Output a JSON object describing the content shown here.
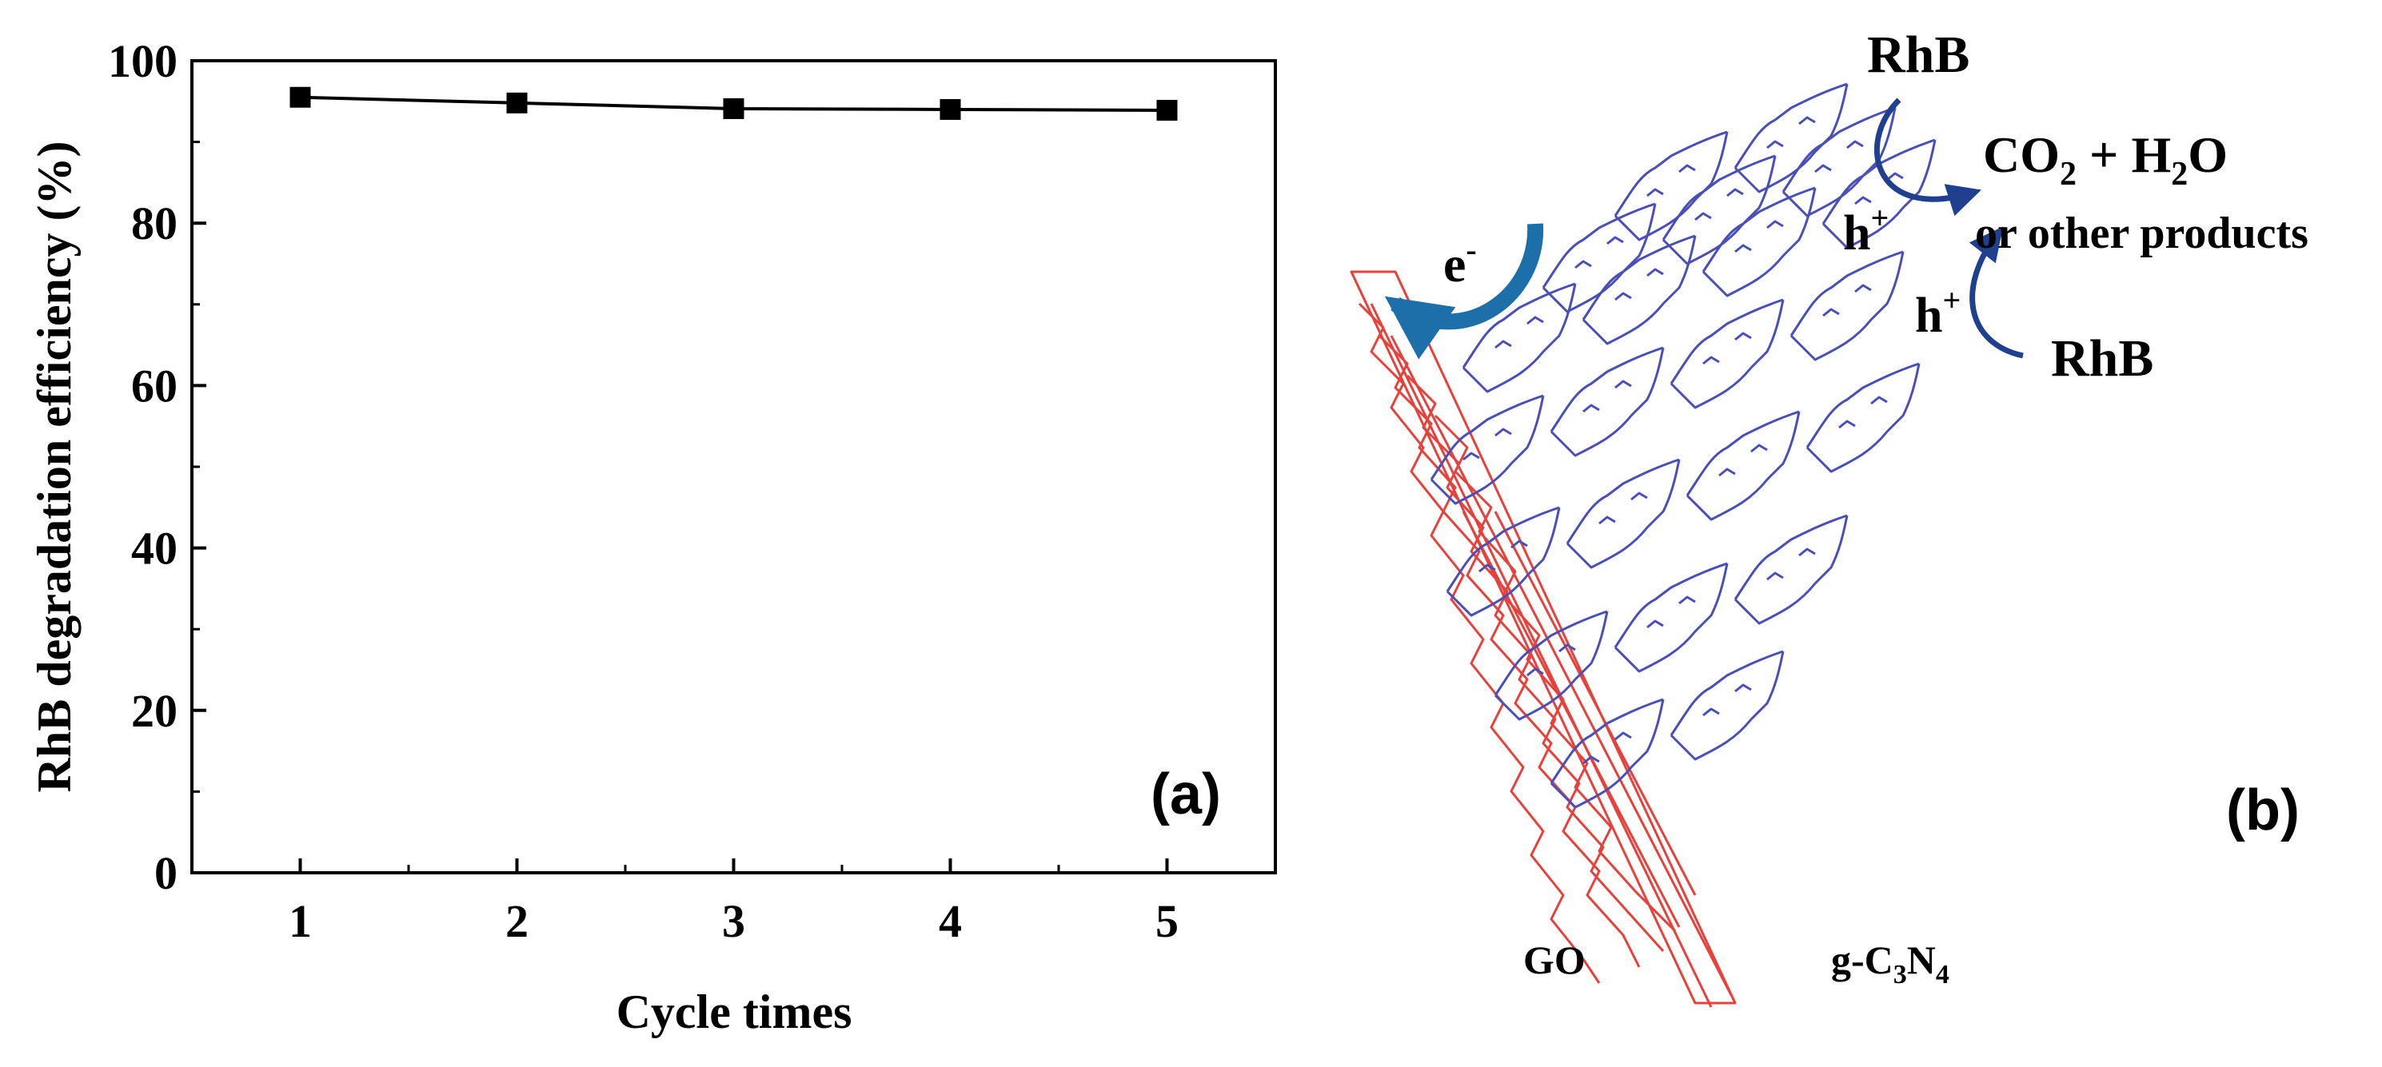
{
  "chart_data": {
    "type": "line",
    "title": "",
    "panel_label": "(a)",
    "xlabel": "Cycle times",
    "ylabel": "RhB degradation efficiency (%)",
    "x": [
      1,
      2,
      3,
      4,
      5
    ],
    "series": [
      {
        "name": "RhB degradation efficiency",
        "values": [
          95.5,
          94.8,
          94.1,
          94.0,
          93.9
        ],
        "color": "#000000"
      }
    ],
    "xlim": [
      0.5,
      5.5
    ],
    "ylim": [
      0,
      100
    ],
    "xticks": [
      1,
      2,
      3,
      4,
      5
    ],
    "yticks": [
      0,
      20,
      40,
      60,
      80,
      100
    ],
    "grid": false,
    "legend": "none"
  },
  "schematic": {
    "panel_label": "(b)",
    "labels": {
      "rhb_top": "RhB",
      "rhb_right": "RhB",
      "products_main": "CO",
      "products_sub1": "2",
      "products_plus": " + H",
      "products_sub2": "2",
      "products_o": "O",
      "products_line2": "or other products",
      "hole_top": "h",
      "hole_bottom": "h",
      "hole_sup": "+",
      "electron": "e",
      "electron_sup": "-",
      "go": "GO",
      "gcn_prefix": "g-C",
      "gcn_sub1": "3",
      "gcn_n": "N",
      "gcn_sub2": "4"
    },
    "colors": {
      "go_sheet": "#e8403a",
      "gcn_sheet": "#4a4fb8",
      "electron_arrow": "#1c6fa8",
      "hole_arrow": "#1f3f8f"
    }
  }
}
